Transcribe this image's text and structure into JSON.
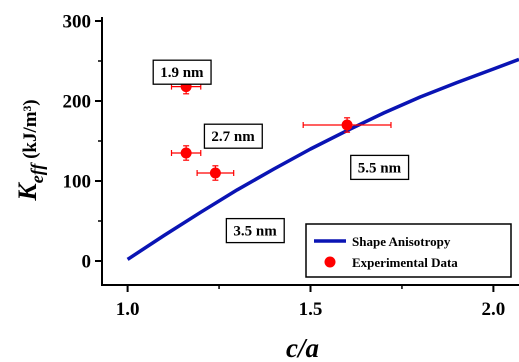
{
  "chart_data": {
    "type": "scatter",
    "xlabel": "c/a",
    "ylabel_main": "K",
    "ylabel_sub": "eff",
    "ylabel_unit": " (kJ/m³)",
    "xlim": [
      0.93,
      2.07
    ],
    "ylim": [
      -30,
      305
    ],
    "x_ticks": [
      1.0,
      1.5,
      2.0
    ],
    "x_tick_labels": [
      "1.0",
      "1.5",
      "2.0"
    ],
    "y_ticks": [
      0,
      100,
      200,
      300
    ],
    "y_tick_labels": [
      "0",
      "100",
      "200",
      "300"
    ],
    "grid": false,
    "legend_position": "bottom-right",
    "series": [
      {
        "name": "Shape Anisotropy",
        "kind": "line",
        "color": "#0a14b4",
        "x": [
          1.0,
          1.1,
          1.2,
          1.3,
          1.4,
          1.5,
          1.6,
          1.7,
          1.8,
          1.9,
          2.0,
          2.07
        ],
        "y": [
          2,
          32,
          61,
          89,
          115,
          140,
          163,
          185,
          205,
          223,
          240,
          252
        ]
      },
      {
        "name": "Experimental Data",
        "kind": "scatter",
        "color": "#ff0000",
        "points": [
          {
            "x": 1.16,
            "y": 218,
            "xerr": 0.04,
            "yerr": 9
          },
          {
            "x": 1.16,
            "y": 135,
            "xerr": 0.04,
            "yerr": 9
          },
          {
            "x": 1.24,
            "y": 110,
            "xerr": 0.05,
            "yerr": 9
          },
          {
            "x": 1.6,
            "y": 170,
            "xerr": 0.12,
            "yerr": 9
          }
        ]
      }
    ],
    "annotations": [
      {
        "text": "1.9 nm",
        "x": 1.07,
        "y": 251
      },
      {
        "text": "2.7 nm",
        "x": 1.21,
        "y": 171
      },
      {
        "text": "5.5 nm",
        "x": 1.61,
        "y": 132
      },
      {
        "text": "3.5 nm",
        "x": 1.27,
        "y": 53
      }
    ]
  }
}
